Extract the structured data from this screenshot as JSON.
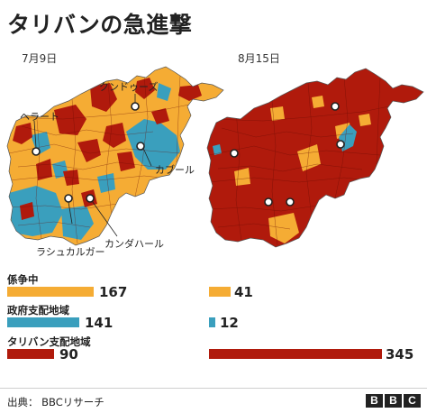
{
  "title": "タリバンの急進撃",
  "dates": {
    "left": "7月9日",
    "right": "8月15日"
  },
  "cities": {
    "kunduz": "クンドゥーズ",
    "herat": "ヘラート",
    "kabul": "カブール",
    "lashkar_gah": "ラシュカルガー",
    "kandahar": "カンダハール"
  },
  "colors": {
    "contested": "#f5ac34",
    "government": "#3a9fbd",
    "taliban": "#b01a0c",
    "border": "#6b0d05"
  },
  "legend": [
    {
      "label": "係争中",
      "color": "#f5ac34",
      "jul9": 167,
      "aug15": 41
    },
    {
      "label": "政府支配地域",
      "color": "#3a9fbd",
      "jul9": 141,
      "aug15": 12
    },
    {
      "label": "タリバン支配地域",
      "color": "#b01a0c",
      "jul9": 90,
      "aug15": 345
    }
  ],
  "source": "出典： BBCリサーチ",
  "logo": [
    "B",
    "B",
    "C"
  ]
}
